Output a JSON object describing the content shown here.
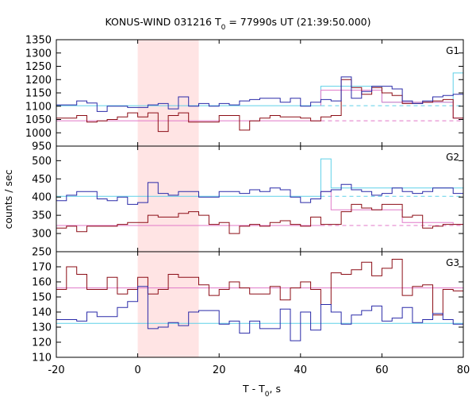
{
  "chart_data": {
    "type": "line",
    "title_main": "KONUS-WIND 031216 T",
    "title_sub": "0",
    "title_rest": " = 77990s UT (21:39:50.000)",
    "xlabel_main": "T - T",
    "xlabel_sub": "0",
    "xlabel_rest": ", s",
    "ylabel": "counts / sec",
    "xlim": [
      -20,
      80
    ],
    "xticks": [
      "-20",
      "0",
      "20",
      "40",
      "60",
      "80"
    ],
    "shaded_interval": [
      0,
      15
    ],
    "colors": {
      "blue": "#2a2aa8",
      "red": "#8c0d16",
      "cyan": "#5fd0e8",
      "pink": "#e078c8",
      "shade": "#ffe4e4"
    },
    "panels": [
      {
        "label": "G1",
        "ylim": [
          950,
          1350
        ],
        "yticks": [
          "950",
          "1000",
          "1050",
          "1100",
          "1150",
          "1200",
          "1250",
          "1300",
          "1350"
        ],
        "blue_steps": [
          {
            "x": -20,
            "values": [
              1105,
              1105,
              1120,
              1112,
              1080,
              1100,
              1100,
              1095,
              1095,
              1105,
              1110,
              1090,
              1135,
              1100,
              1110,
              1100,
              1110,
              1105,
              1120,
              1125,
              1130,
              1130,
              1115,
              1130,
              1100,
              1115,
              1125,
              1120,
              1210,
              1130,
              1155,
              1175,
              1175,
              1165,
              1120,
              1110,
              1120,
              1135,
              1140,
              1145,
              1240
            ]
          }
        ],
        "red_steps": [
          {
            "x": -20,
            "values": [
              1055,
              1055,
              1065,
              1040,
              1045,
              1050,
              1060,
              1075,
              1060,
              1075,
              1005,
              1065,
              1075,
              1040,
              1040,
              1040,
              1065,
              1065,
              1010,
              1045,
              1055,
              1065,
              1060,
              1060,
              1055,
              1045,
              1060,
              1065,
              1200,
              1170,
              1145,
              1170,
              1150,
              1140,
              1110,
              1110,
              1115,
              1120,
              1125,
              1055,
              1290
            ]
          }
        ],
        "blue_fit": [
          {
            "x": [
              -20,
              45
            ],
            "y": 1102,
            "style": "solid"
          },
          {
            "x": [
              45,
              80
            ],
            "y": 1102,
            "style": "dashed"
          }
        ],
        "red_fit": [
          {
            "x": [
              -20,
              45
            ],
            "y": 1045,
            "style": "solid"
          },
          {
            "x": [
              45,
              80
            ],
            "y": 1045,
            "style": "dashed"
          }
        ],
        "cyan_overlay": {
          "x": [
            45,
            60,
            77.5,
            80
          ],
          "y": [
            1175,
            1115,
            1225,
            1240
          ]
        },
        "pink_overlay": {
          "x": [
            45,
            60,
            77.5,
            80
          ],
          "y": [
            1160,
            1115,
            1055,
            1270
          ]
        }
      },
      {
        "label": "G2",
        "ylim": [
          250,
          540
        ],
        "yticks": [
          "250",
          "300",
          "350",
          "400",
          "450",
          "500"
        ],
        "blue_steps": [
          {
            "x": -20,
            "values": [
              390,
              405,
              415,
              415,
              395,
              390,
              400,
              380,
              385,
              440,
              410,
              405,
              415,
              415,
              400,
              400,
              415,
              415,
              410,
              420,
              415,
              425,
              420,
              400,
              385,
              395,
              415,
              420,
              435,
              420,
              415,
              405,
              410,
              425,
              415,
              410,
              415,
              425,
              425,
              410,
              440
            ]
          }
        ],
        "red_steps": [
          {
            "x": -20,
            "values": [
              315,
              320,
              305,
              320,
              320,
              320,
              325,
              330,
              330,
              350,
              345,
              345,
              355,
              360,
              350,
              325,
              330,
              300,
              320,
              325,
              320,
              330,
              335,
              325,
              320,
              345,
              325,
              325,
              360,
              380,
              370,
              365,
              380,
              380,
              345,
              350,
              315,
              320,
              325,
              325,
              380
            ]
          }
        ],
        "blue_fit": [
          {
            "x": [
              -20,
              45
            ],
            "y": 402,
            "style": "solid"
          },
          {
            "x": [
              45,
              80
            ],
            "y": 402,
            "style": "dashed"
          }
        ],
        "red_fit": [
          {
            "x": [
              -20,
              45
            ],
            "y": 322,
            "style": "solid"
          },
          {
            "x": [
              45,
              80
            ],
            "y": 322,
            "style": "dashed"
          }
        ],
        "cyan_overlay": {
          "x": [
            45,
            47.5,
            65,
            77.5,
            80
          ],
          "y": [
            505,
            425,
            425,
            425,
            455
          ]
        },
        "pink_overlay": {
          "x": [
            45,
            47.5,
            55,
            65,
            77.5,
            80
          ],
          "y": [
            415,
            365,
            365,
            330,
            325,
            395
          ]
        }
      },
      {
        "label": "G3",
        "ylim": [
          110,
          180
        ],
        "yticks": [
          "110",
          "120",
          "130",
          "140",
          "150",
          "160",
          "170"
        ],
        "blue_steps": [
          {
            "x": -20,
            "values": [
              135,
              135,
              134,
              140,
              137,
              137,
              143,
              147,
              157,
              129,
              130,
              133,
              131,
              140,
              141,
              141,
              132,
              134,
              126,
              134,
              129,
              129,
              142,
              121,
              140,
              128,
              145,
              140,
              132,
              138,
              141,
              144,
              134,
              136,
              143,
              133,
              135,
              139,
              135,
              132,
              154
            ]
          }
        ],
        "red_steps": [
          {
            "x": -20,
            "values": [
              155,
              170,
              165,
              155,
              155,
              163,
              152,
              155,
              163,
              152,
              155,
              165,
              163,
              163,
              158,
              151,
              155,
              160,
              156,
              152,
              152,
              157,
              148,
              156,
              160,
              155,
              145,
              166,
              165,
              168,
              173,
              164,
              169,
              175,
              151,
              157,
              158,
              138,
              155,
              154,
              167
            ]
          }
        ],
        "blue_fit": [
          {
            "x": [
              -20,
              80
            ],
            "y": 132.5,
            "style": "solid"
          }
        ],
        "red_fit": [
          {
            "x": [
              -20,
              80
            ],
            "y": 156,
            "style": "solid"
          }
        ]
      }
    ]
  }
}
